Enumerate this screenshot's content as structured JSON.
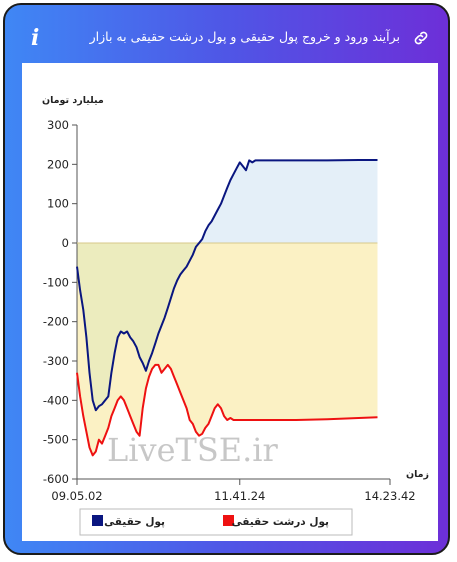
{
  "header": {
    "title": "برآیند ورود و خروج پول حقیقی و پول درشت حقیقی به بازار",
    "info_icon": "info-icon",
    "link_icon": "link-icon"
  },
  "watermark": "LiveTSE.ir",
  "colors": {
    "series_real": "#0a1680",
    "series_big": "#ee1111",
    "area_negative": "#fbf1c4",
    "area_negative_overlap": "#ececbe",
    "area_positive": "#e4eff8"
  },
  "chart_data": {
    "type": "line",
    "title": "",
    "ylabel": "میلیارد تومان",
    "xlabel": "زمان",
    "ylim": [
      -600,
      300
    ],
    "yticks": [
      300,
      200,
      100,
      0,
      -100,
      -200,
      -300,
      -400,
      -500,
      -600
    ],
    "xlim": [
      0,
      100
    ],
    "xticks": [
      {
        "x": 0,
        "label": "09.05.02"
      },
      {
        "x": 52,
        "label": "11.41.24"
      },
      {
        "x": 100,
        "label": "14.23.42"
      }
    ],
    "legend_position": "bottom",
    "series": [
      {
        "name": "پول حقیقی",
        "color": "#0a1680",
        "points": [
          [
            0,
            -60
          ],
          [
            1,
            -120
          ],
          [
            2,
            -170
          ],
          [
            3,
            -240
          ],
          [
            4,
            -330
          ],
          [
            5,
            -400
          ],
          [
            6,
            -425
          ],
          [
            7,
            -415
          ],
          [
            8,
            -410
          ],
          [
            9,
            -400
          ],
          [
            10,
            -390
          ],
          [
            11,
            -330
          ],
          [
            12,
            -280
          ],
          [
            13,
            -240
          ],
          [
            14,
            -225
          ],
          [
            15,
            -230
          ],
          [
            16,
            -225
          ],
          [
            17,
            -240
          ],
          [
            18,
            -250
          ],
          [
            19,
            -265
          ],
          [
            20,
            -290
          ],
          [
            21,
            -305
          ],
          [
            22,
            -325
          ],
          [
            23,
            -300
          ],
          [
            24,
            -280
          ],
          [
            25,
            -255
          ],
          [
            26,
            -230
          ],
          [
            27,
            -210
          ],
          [
            28,
            -190
          ],
          [
            29,
            -165
          ],
          [
            30,
            -140
          ],
          [
            31,
            -115
          ],
          [
            32,
            -95
          ],
          [
            33,
            -80
          ],
          [
            34,
            -70
          ],
          [
            35,
            -60
          ],
          [
            36,
            -45
          ],
          [
            37,
            -30
          ],
          [
            38,
            -10
          ],
          [
            39,
            0
          ],
          [
            40,
            10
          ],
          [
            41,
            30
          ],
          [
            42,
            45
          ],
          [
            43,
            55
          ],
          [
            44,
            70
          ],
          [
            45,
            85
          ],
          [
            46,
            100
          ],
          [
            47,
            120
          ],
          [
            48,
            140
          ],
          [
            49,
            160
          ],
          [
            50,
            175
          ],
          [
            51,
            190
          ],
          [
            52,
            205
          ],
          [
            53,
            195
          ],
          [
            54,
            185
          ],
          [
            55,
            210
          ],
          [
            56,
            205
          ],
          [
            57,
            210
          ],
          [
            60,
            210
          ],
          [
            70,
            210
          ],
          [
            80,
            210
          ],
          [
            90,
            211
          ],
          [
            96,
            211
          ]
        ]
      },
      {
        "name": "پول درشت حقیقی",
        "color": "#ee1111",
        "points": [
          [
            0,
            -330
          ],
          [
            1,
            -390
          ],
          [
            2,
            -440
          ],
          [
            3,
            -480
          ],
          [
            4,
            -520
          ],
          [
            5,
            -540
          ],
          [
            6,
            -530
          ],
          [
            7,
            -500
          ],
          [
            8,
            -510
          ],
          [
            9,
            -490
          ],
          [
            10,
            -470
          ],
          [
            11,
            -440
          ],
          [
            12,
            -420
          ],
          [
            13,
            -400
          ],
          [
            14,
            -390
          ],
          [
            15,
            -400
          ],
          [
            16,
            -420
          ],
          [
            17,
            -440
          ],
          [
            18,
            -460
          ],
          [
            19,
            -480
          ],
          [
            20,
            -490
          ],
          [
            21,
            -420
          ],
          [
            22,
            -370
          ],
          [
            23,
            -340
          ],
          [
            24,
            -320
          ],
          [
            25,
            -310
          ],
          [
            26,
            -310
          ],
          [
            27,
            -330
          ],
          [
            28,
            -320
          ],
          [
            29,
            -310
          ],
          [
            30,
            -320
          ],
          [
            31,
            -340
          ],
          [
            32,
            -360
          ],
          [
            33,
            -380
          ],
          [
            34,
            -400
          ],
          [
            35,
            -420
          ],
          [
            36,
            -450
          ],
          [
            37,
            -460
          ],
          [
            38,
            -480
          ],
          [
            39,
            -490
          ],
          [
            40,
            -485
          ],
          [
            41,
            -470
          ],
          [
            42,
            -460
          ],
          [
            43,
            -440
          ],
          [
            44,
            -420
          ],
          [
            45,
            -410
          ],
          [
            46,
            -420
          ],
          [
            47,
            -440
          ],
          [
            48,
            -450
          ],
          [
            49,
            -445
          ],
          [
            50,
            -450
          ],
          [
            55,
            -450
          ],
          [
            60,
            -450
          ],
          [
            70,
            -450
          ],
          [
            80,
            -448
          ],
          [
            90,
            -445
          ],
          [
            96,
            -443
          ]
        ]
      }
    ]
  }
}
